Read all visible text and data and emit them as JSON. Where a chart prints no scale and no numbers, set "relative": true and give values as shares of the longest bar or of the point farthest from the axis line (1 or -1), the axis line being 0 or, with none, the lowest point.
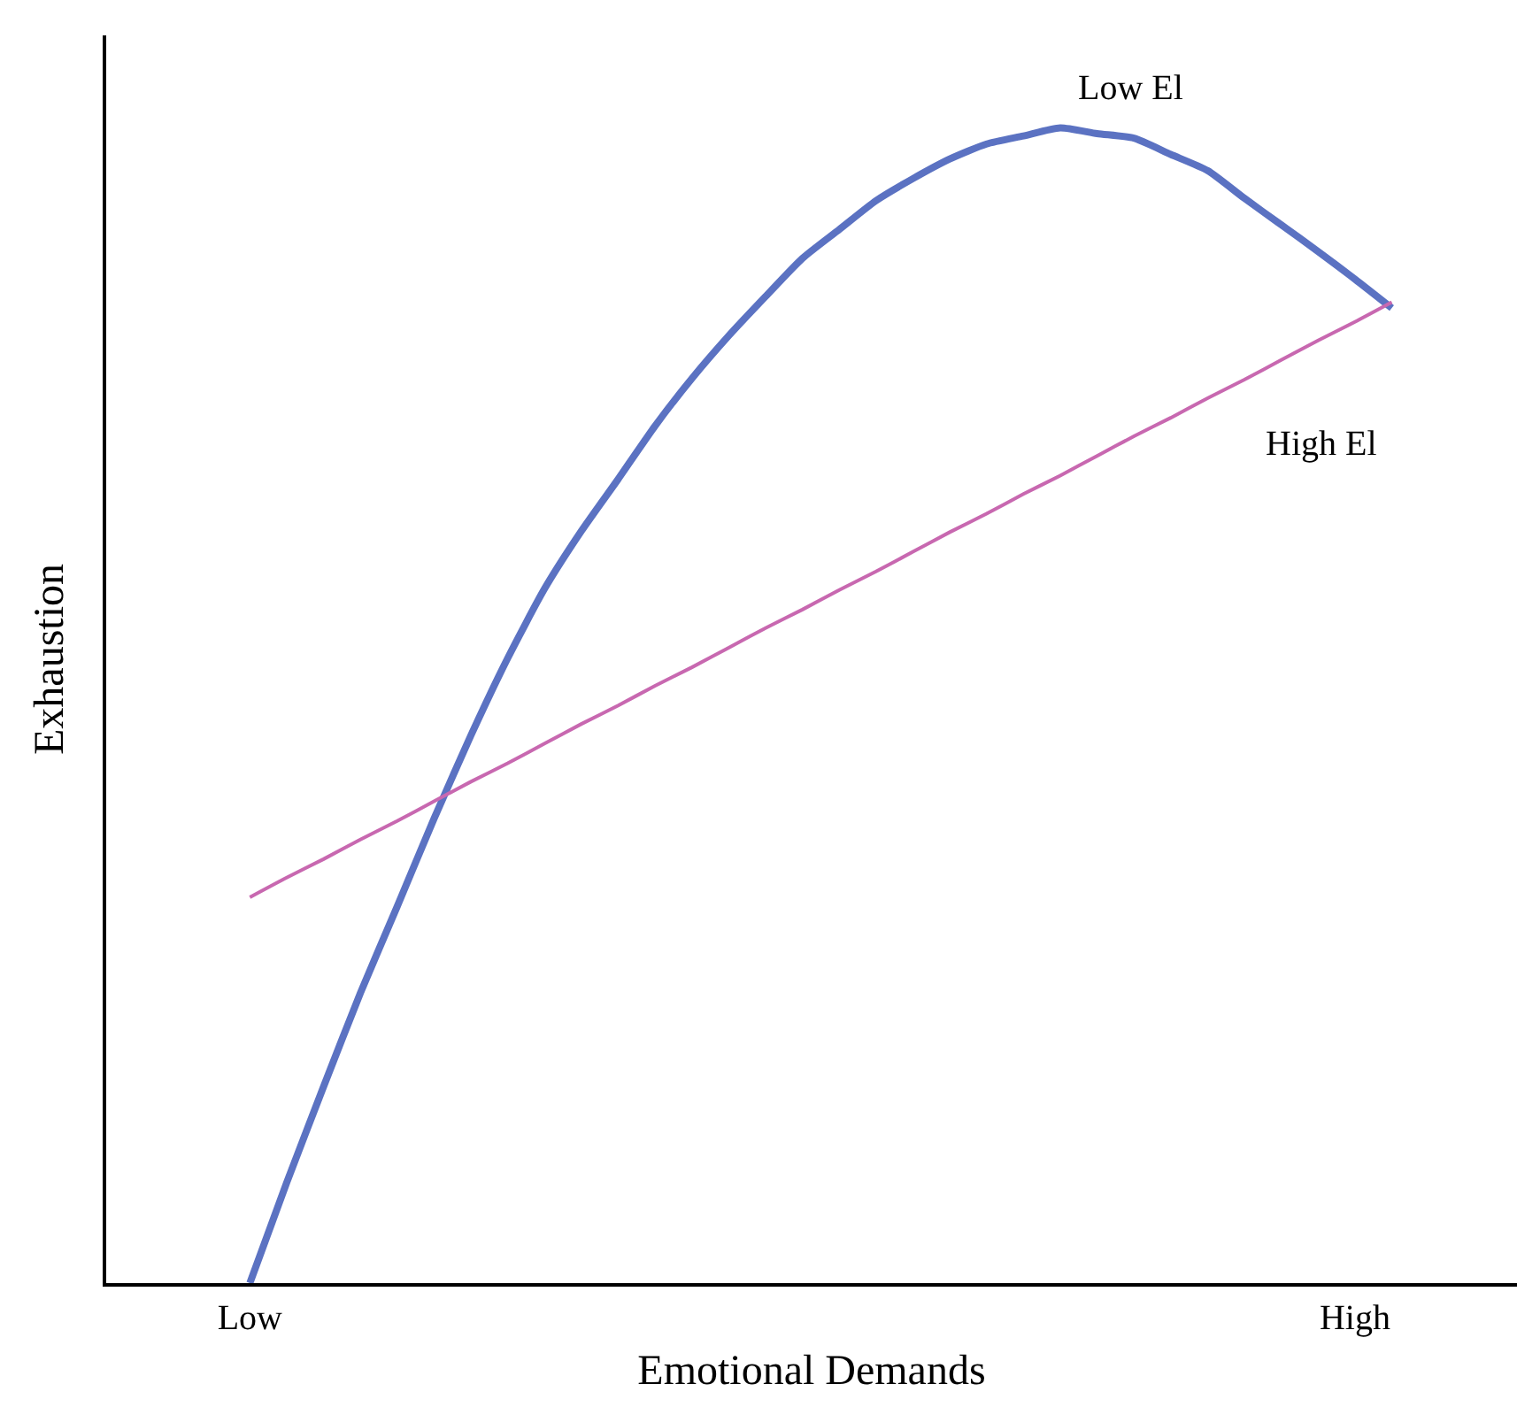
{
  "chart_data": {
    "type": "line",
    "relative": true,
    "xlabel": "Emotional Demands",
    "ylabel": "Exhaustion",
    "categories": [
      "Low",
      null,
      null,
      null,
      null,
      null,
      null,
      null,
      null,
      null,
      null,
      null,
      null,
      null,
      null,
      null,
      null,
      null,
      null,
      null,
      null,
      null,
      null,
      null,
      null,
      null,
      null,
      null,
      null,
      null,
      "High",
      null
    ],
    "marker": "none",
    "line_style": "solid",
    "series": [
      {
        "name": "Low El",
        "color": "#5b72c2",
        "values": [
          0,
          0.087,
          0.17,
          0.251,
          0.326,
          0.402,
          0.474,
          0.541,
          0.601,
          0.651,
          0.696,
          0.742,
          0.783,
          0.82,
          0.854,
          0.887,
          0.912,
          0.937,
          0.956,
          0.973,
          0.986,
          0.993,
          1,
          0.995,
          0.991,
          0.977,
          0.963,
          0.939,
          0.916,
          0.893,
          0.869,
          0.844
        ]
      },
      {
        "name": "High El",
        "color": "#c868b0",
        "values": [
          0.334,
          0.351,
          0.367,
          0.384,
          0.4,
          0.417,
          0.434,
          0.45,
          0.467,
          0.484,
          0.5,
          0.517,
          0.533,
          0.55,
          0.567,
          0.583,
          0.6,
          0.616,
          0.633,
          0.65,
          0.666,
          0.683,
          0.699,
          0.716,
          0.733,
          0.749,
          0.766,
          0.782,
          0.799,
          0.816,
          0.832,
          0.849
        ]
      }
    ]
  }
}
